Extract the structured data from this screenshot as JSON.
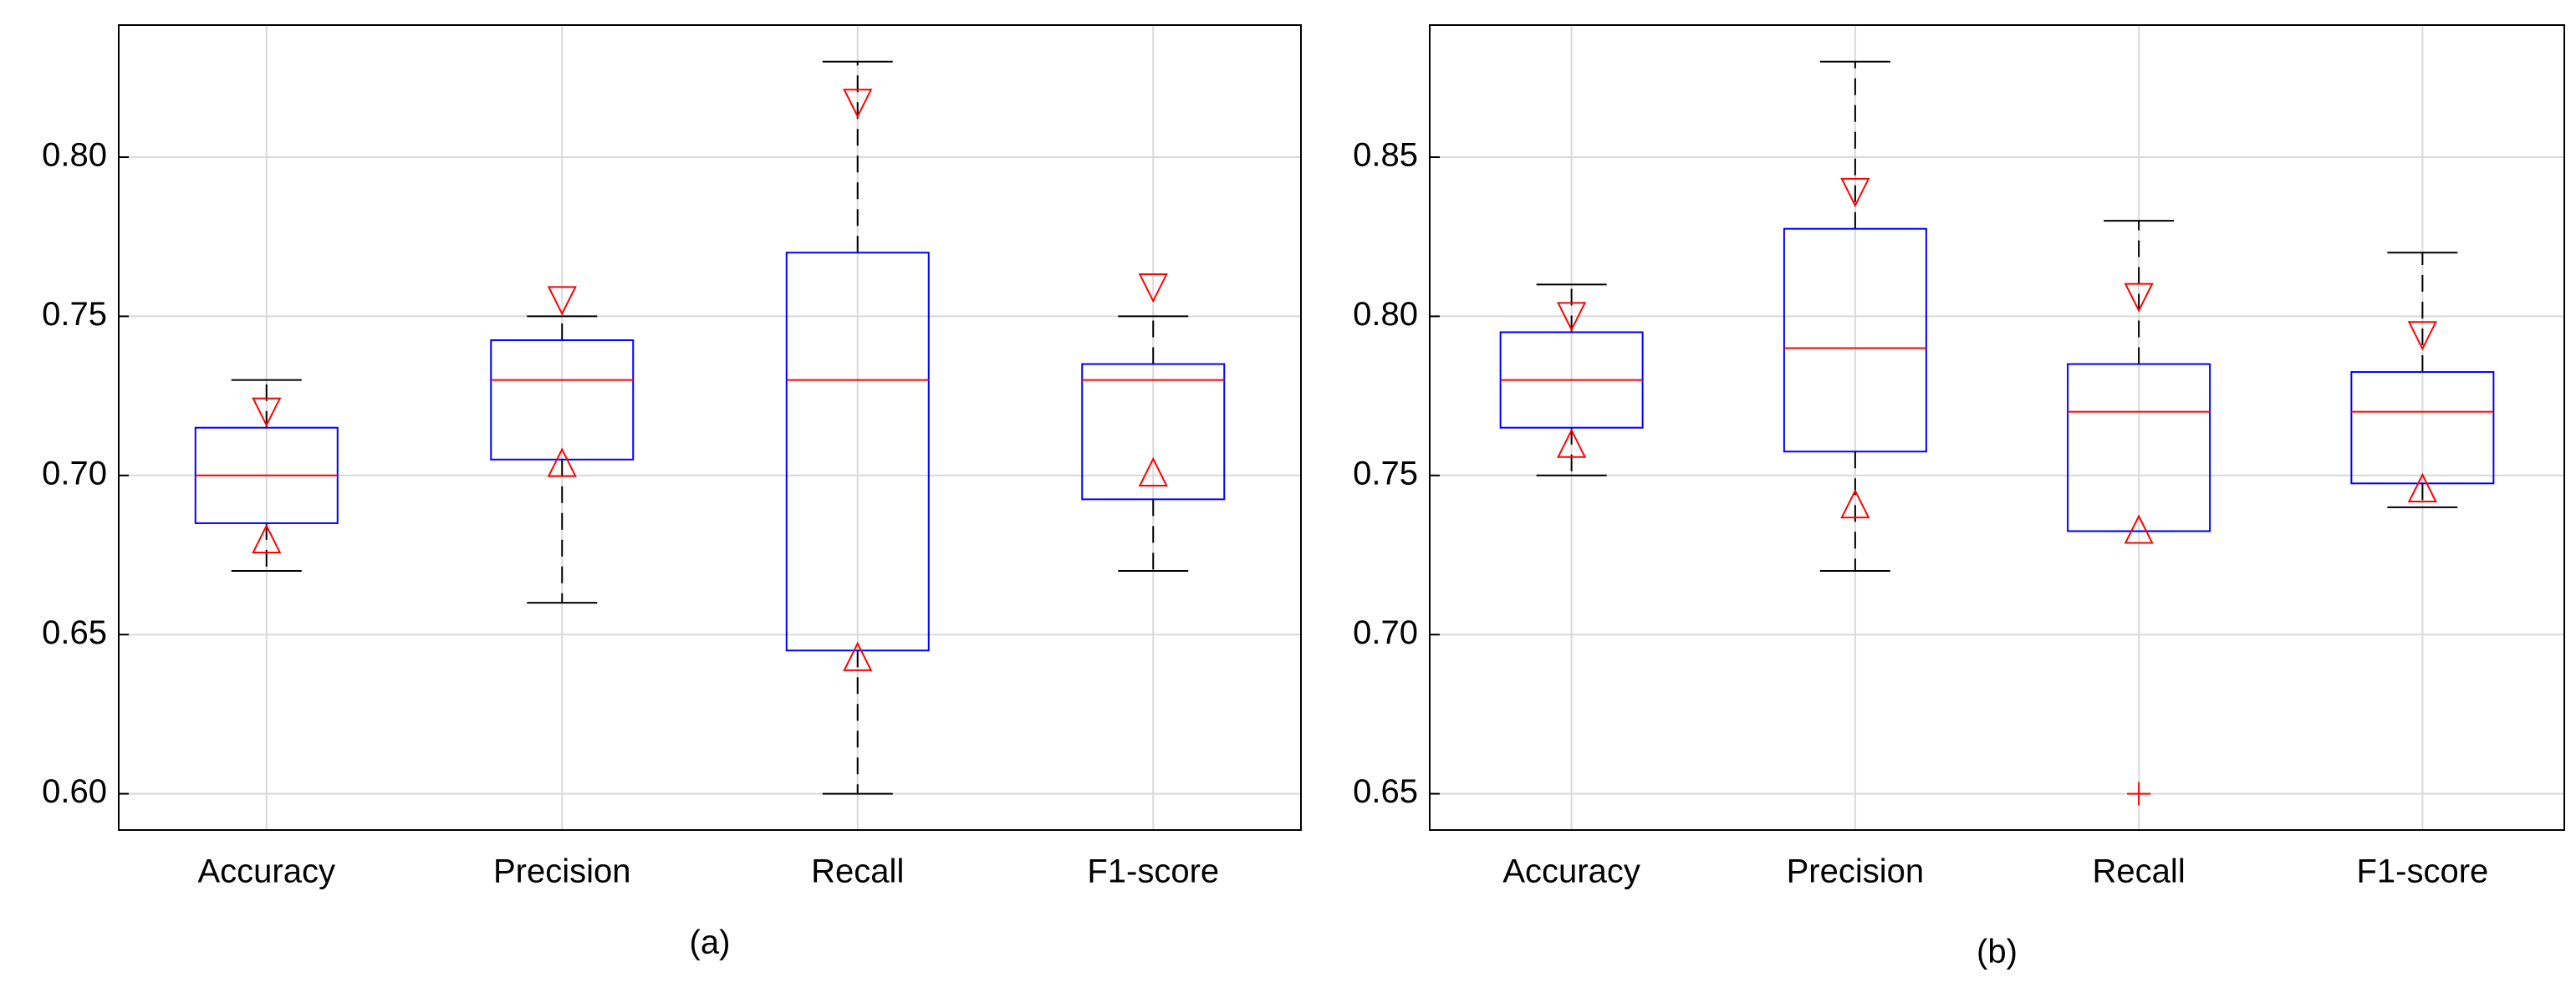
{
  "chart_data": [
    {
      "type": "box",
      "caption": "(a)",
      "categories": [
        "Accuracy",
        "Precision",
        "Recall",
        "F1-score"
      ],
      "boxes": [
        {
          "whisker_low": 0.67,
          "q1": 0.685,
          "median": 0.7,
          "q3": 0.715,
          "whisker_high": 0.73,
          "notch_low": 0.68,
          "notch_high": 0.72,
          "outliers": []
        },
        {
          "whisker_low": 0.66,
          "q1": 0.705,
          "median": 0.73,
          "q3": 0.7425,
          "whisker_high": 0.75,
          "notch_low": 0.704,
          "notch_high": 0.755,
          "outliers": []
        },
        {
          "whisker_low": 0.6,
          "q1": 0.645,
          "median": 0.73,
          "q3": 0.77,
          "whisker_high": 0.83,
          "notch_low": 0.643,
          "notch_high": 0.817,
          "outliers": []
        },
        {
          "whisker_low": 0.67,
          "q1": 0.6925,
          "median": 0.73,
          "q3": 0.735,
          "whisker_high": 0.75,
          "notch_low": 0.701,
          "notch_high": 0.759,
          "outliers": []
        }
      ],
      "ylim": [
        0.5886,
        0.8415
      ],
      "yticks": [
        {
          "value": 0.6,
          "label": "0.60"
        },
        {
          "value": 0.65,
          "label": "0.65"
        },
        {
          "value": 0.7,
          "label": "0.70"
        },
        {
          "value": 0.75,
          "label": "0.75"
        },
        {
          "value": 0.8,
          "label": "0.80"
        }
      ],
      "grid": true,
      "box_color": "#0000ff",
      "median_color": "#ff0000",
      "whisker_color": "#000000"
    },
    {
      "type": "box",
      "caption": "(b)",
      "categories": [
        "Accuracy",
        "Precision",
        "Recall",
        "F1-score"
      ],
      "boxes": [
        {
          "whisker_low": 0.75,
          "q1": 0.765,
          "median": 0.78,
          "q3": 0.795,
          "whisker_high": 0.81,
          "notch_low": 0.76,
          "notch_high": 0.8,
          "outliers": []
        },
        {
          "whisker_low": 0.72,
          "q1": 0.7575,
          "median": 0.79,
          "q3": 0.8275,
          "whisker_high": 0.88,
          "notch_low": 0.741,
          "notch_high": 0.839,
          "outliers": []
        },
        {
          "whisker_low": 0.7325,
          "q1": 0.7325,
          "median": 0.77,
          "q3": 0.785,
          "whisker_high": 0.83,
          "notch_low": 0.733,
          "notch_high": 0.806,
          "outliers": [
            0.65
          ]
        },
        {
          "whisker_low": 0.74,
          "q1": 0.7475,
          "median": 0.77,
          "q3": 0.7825,
          "whisker_high": 0.82,
          "notch_low": 0.746,
          "notch_high": 0.794,
          "outliers": []
        }
      ],
      "ylim": [
        0.6386,
        0.8915
      ],
      "yticks": [
        {
          "value": 0.65,
          "label": "0.65"
        },
        {
          "value": 0.7,
          "label": "0.70"
        },
        {
          "value": 0.75,
          "label": "0.75"
        },
        {
          "value": 0.8,
          "label": "0.80"
        },
        {
          "value": 0.85,
          "label": "0.85"
        }
      ],
      "grid": true,
      "box_color": "#0000ff",
      "median_color": "#ff0000",
      "whisker_color": "#000000"
    }
  ]
}
